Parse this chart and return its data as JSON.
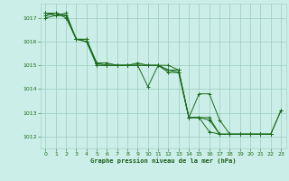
{
  "bg_color": "#cceee8",
  "grid_color": "#99ccbb",
  "line_color": "#1a6b1a",
  "xlabel": "Graphe pression niveau de la mer (hPa)",
  "xlabel_color": "#1a5c1a",
  "ylim": [
    1011.5,
    1017.6
  ],
  "xlim": [
    -0.5,
    23.5
  ],
  "yticks": [
    1012,
    1013,
    1014,
    1015,
    1016,
    1017
  ],
  "xticks": [
    0,
    1,
    2,
    3,
    4,
    5,
    6,
    7,
    8,
    9,
    10,
    11,
    12,
    13,
    14,
    15,
    16,
    17,
    18,
    19,
    20,
    21,
    22,
    23
  ],
  "series": [
    [
      1017.2,
      1017.2,
      1017.1,
      1016.1,
      1016.1,
      1015.1,
      1015.0,
      1015.0,
      1015.0,
      1015.0,
      1015.0,
      1015.0,
      1014.8,
      1014.8,
      1012.8,
      1012.8,
      1012.8,
      1012.1,
      1012.1,
      1012.1,
      1012.1,
      1012.1,
      1012.1,
      null
    ],
    [
      1017.1,
      1017.2,
      1017.0,
      1016.1,
      1016.1,
      1015.0,
      1015.0,
      1015.0,
      1015.0,
      1015.0,
      1015.0,
      1015.0,
      1014.7,
      1014.7,
      1012.8,
      1012.8,
      1012.7,
      1012.1,
      1012.1,
      1012.1,
      1012.1,
      1012.1,
      1012.1,
      null
    ],
    [
      1017.0,
      1017.1,
      1017.2,
      1016.1,
      1016.0,
      1015.0,
      1015.0,
      1015.0,
      1015.0,
      1015.0,
      1014.1,
      1015.0,
      1015.0,
      1014.8,
      1012.8,
      1013.8,
      1013.8,
      1012.7,
      1012.1,
      1012.1,
      1012.1,
      1012.1,
      1012.1,
      1013.1
    ],
    [
      1017.2,
      1017.1,
      1017.1,
      1016.1,
      1016.0,
      1015.1,
      1015.1,
      1015.0,
      1015.0,
      1015.1,
      1015.0,
      1015.0,
      1014.8,
      1014.7,
      1012.8,
      1012.8,
      1012.2,
      1012.1,
      1012.1,
      1012.1,
      1012.1,
      1012.1,
      1012.1,
      1013.1
    ]
  ]
}
